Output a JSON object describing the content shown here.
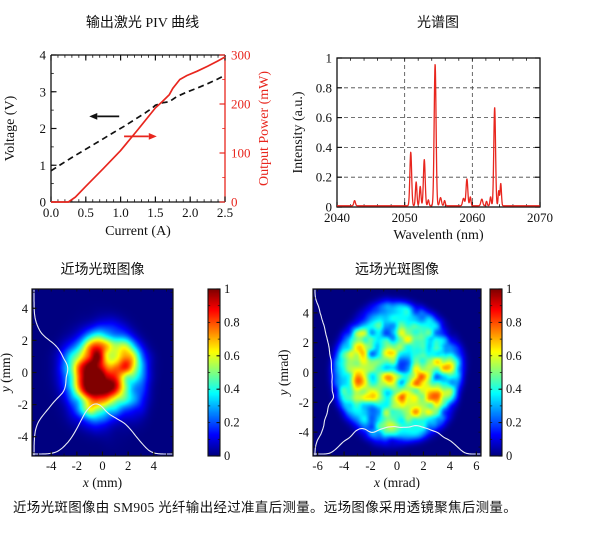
{
  "caption": "近场光斑图像由 SM905 光纤输出经过准直后测量。远场图像采用透镜聚焦后测量。",
  "chart_data": [
    {
      "id": "piv",
      "type": "line",
      "title": "输出激光 PIV 曲线",
      "xlabel": "Current (A)",
      "ylabel_left": "Voltage (V)",
      "ylabel_right": "Output Power (mW)",
      "xlim": [
        0,
        2.5
      ],
      "ylim_left": [
        0,
        4
      ],
      "ylim_right": [
        0,
        300
      ],
      "xticks": [
        [
          0,
          "0.0"
        ],
        [
          0.5,
          "0.5"
        ],
        [
          1,
          "1.0"
        ],
        [
          1.5,
          "1.5"
        ],
        [
          2,
          "2.0"
        ],
        [
          2.5,
          "2.5"
        ]
      ],
      "yticks_left": [
        [
          0,
          "0"
        ],
        [
          1,
          "1"
        ],
        [
          2,
          "2"
        ],
        [
          3,
          "3"
        ],
        [
          4,
          "4"
        ]
      ],
      "yticks_right": [
        [
          0,
          "0"
        ],
        [
          100,
          "100"
        ],
        [
          200,
          "200"
        ],
        [
          300,
          "300"
        ]
      ],
      "x_minor_step": 0.1,
      "y_left_minor_step": 0.5,
      "y_right_minor_step": 50,
      "axis_color": "#111111",
      "right_color": "#e8261e",
      "grid": "off",
      "legend": "none",
      "series": [
        {
          "name": "voltage",
          "axis": "left",
          "color": "#111111",
          "dash": "6 4",
          "points": [
            [
              0,
              0.85
            ],
            [
              0.15,
              1.03
            ],
            [
              0.3,
              1.21
            ],
            [
              0.45,
              1.38
            ],
            [
              0.6,
              1.55
            ],
            [
              0.75,
              1.72
            ],
            [
              0.9,
              1.89
            ],
            [
              1.05,
              2.06
            ],
            [
              1.2,
              2.24
            ],
            [
              1.35,
              2.42
            ],
            [
              1.45,
              2.55
            ],
            [
              1.5,
              2.63
            ],
            [
              1.6,
              2.7
            ],
            [
              1.7,
              2.73
            ],
            [
              1.8,
              2.86
            ],
            [
              1.95,
              2.99
            ],
            [
              2.1,
              3.1
            ],
            [
              2.25,
              3.22
            ],
            [
              2.4,
              3.35
            ],
            [
              2.5,
              3.45
            ]
          ]
        },
        {
          "name": "power",
          "axis": "right",
          "color": "#e8261e",
          "dash": null,
          "points": [
            [
              0,
              0
            ],
            [
              0.25,
              0
            ],
            [
              0.35,
              10
            ],
            [
              0.5,
              32
            ],
            [
              0.75,
              68
            ],
            [
              1,
              105
            ],
            [
              1.25,
              148
            ],
            [
              1.5,
              192
            ],
            [
              1.6,
              205
            ],
            [
              1.7,
              219
            ],
            [
              1.75,
              232
            ],
            [
              1.85,
              250
            ],
            [
              1.95,
              258
            ],
            [
              2.1,
              267
            ],
            [
              2.25,
              277
            ],
            [
              2.4,
              288
            ],
            [
              2.5,
              296
            ]
          ]
        }
      ],
      "arrows": [
        {
          "color": "#111111",
          "axis": "left",
          "from": [
            0.98,
            2.33
          ],
          "to": [
            0.55,
            2.33
          ]
        },
        {
          "color": "#e8261e",
          "axis": "right",
          "from": [
            1.05,
            134
          ],
          "to": [
            1.52,
            134
          ]
        }
      ]
    },
    {
      "id": "spectrum",
      "type": "line",
      "title": "光谱图",
      "xlabel": "Wavelenth (nm)",
      "ylabel": "Intensity (a.u.)",
      "xlim": [
        2040,
        2070
      ],
      "ylim": [
        0,
        1
      ],
      "xticks": [
        [
          2040,
          "2040"
        ],
        [
          2050,
          "2050"
        ],
        [
          2060,
          "2060"
        ],
        [
          2070,
          "2070"
        ]
      ],
      "yticks": [
        [
          0,
          "0"
        ],
        [
          0.2,
          "0.2"
        ],
        [
          0.4,
          "0.4"
        ],
        [
          0.6,
          "0.6"
        ],
        [
          0.8,
          "0.8"
        ],
        [
          1,
          "1"
        ]
      ],
      "x_minor_step": 2,
      "grid": {
        "x": [
          2050,
          2060
        ],
        "y": [
          0.2,
          0.4,
          0.6,
          0.8
        ],
        "style": "dashed",
        "color": "#444444"
      },
      "line_color": "#e8261e",
      "baseline": 0.008,
      "peaks": [
        [
          2042.6,
          0.035,
          0.12
        ],
        [
          2050.9,
          0.36,
          0.13
        ],
        [
          2051.7,
          0.16,
          0.11
        ],
        [
          2052.3,
          0.13,
          0.11
        ],
        [
          2052.9,
          0.31,
          0.13
        ],
        [
          2053.5,
          0.04,
          0.1
        ],
        [
          2054.5,
          0.95,
          0.14
        ],
        [
          2055.3,
          0.055,
          0.14
        ],
        [
          2055.9,
          0.035,
          0.1
        ],
        [
          2058.7,
          0.05,
          0.14
        ],
        [
          2059.2,
          0.18,
          0.13
        ],
        [
          2059.7,
          0.06,
          0.1
        ],
        [
          2061.4,
          0.045,
          0.14
        ],
        [
          2062.1,
          0.03,
          0.1
        ],
        [
          2062.7,
          0.06,
          0.1
        ],
        [
          2063.3,
          0.66,
          0.13
        ],
        [
          2063.9,
          0.1,
          0.09
        ],
        [
          2064.2,
          0.15,
          0.1
        ]
      ]
    },
    {
      "id": "nearfield",
      "type": "heatmap",
      "title": "近场光斑图像",
      "xlabel": "x (mm)",
      "ylabel": "y (mm)",
      "xlim": [
        -5.5,
        5.5
      ],
      "ylim": [
        -5.2,
        5.2
      ],
      "xticks": [
        [
          -4,
          "-4"
        ],
        [
          -2,
          "-2"
        ],
        [
          0,
          "0"
        ],
        [
          2,
          "2"
        ],
        [
          4,
          "4"
        ]
      ],
      "yticks": [
        [
          4,
          "4"
        ],
        [
          2,
          "2"
        ],
        [
          0,
          "0"
        ],
        [
          -2,
          "-2"
        ],
        [
          -4,
          "-4"
        ]
      ],
      "minor_step": 1,
      "colormap": "jet",
      "colorbar_range": [
        0,
        1
      ],
      "colorbar_ticks": [
        [
          0,
          "0"
        ],
        [
          0.2,
          "0.2"
        ],
        [
          0.4,
          "0.4"
        ],
        [
          0.6,
          "0.6"
        ],
        [
          0.8,
          "0.8"
        ],
        [
          1,
          "1"
        ]
      ],
      "spot": {
        "cx": 0,
        "cy": -0.1,
        "radius": 2.75,
        "edge_power": 3.4,
        "base": 0.88,
        "noise_amp": 0.42,
        "seed": 7,
        "noise_n": [
          8,
          16
        ],
        "edge_ragged": 0.5
      },
      "profile_color": "#e9ebf5",
      "profile_scale_x": 0.24,
      "profile_scale_y": 0.3
    },
    {
      "id": "farfield",
      "type": "heatmap",
      "title": "远场光斑图像",
      "xlabel": "x (mrad)",
      "ylabel": "y (mrad)",
      "xlim": [
        -6.35,
        6.35
      ],
      "ylim": [
        -5.6,
        5.6
      ],
      "xticks": [
        [
          -6,
          "-6"
        ],
        [
          -4,
          "-4"
        ],
        [
          -2,
          "-2"
        ],
        [
          0,
          "0"
        ],
        [
          2,
          "2"
        ],
        [
          4,
          "4"
        ],
        [
          6,
          "6"
        ]
      ],
      "yticks": [
        [
          4,
          "4"
        ],
        [
          2,
          "2"
        ],
        [
          0,
          "0"
        ],
        [
          -2,
          "-2"
        ],
        [
          -4,
          "-4"
        ]
      ],
      "minor_step": 1,
      "colormap": "jet",
      "colorbar_range": [
        0,
        1
      ],
      "colorbar_ticks": [
        [
          0,
          "0"
        ],
        [
          0.2,
          "0.2"
        ],
        [
          0.4,
          "0.4"
        ],
        [
          0.6,
          "0.6"
        ],
        [
          0.8,
          "0.8"
        ],
        [
          1,
          "1"
        ]
      ],
      "spot": {
        "cx": 0,
        "cy": -0.05,
        "radius": 4.7,
        "edge_power": 10,
        "base": 0.52,
        "noise_amp": 0.38,
        "seed": 12,
        "noise_n": [
          12,
          24
        ],
        "edge_ragged": 0.25
      },
      "profile_color": "#e9ebf5",
      "profile_scale_x": 0.11,
      "profile_scale_y": 0.17
    }
  ]
}
